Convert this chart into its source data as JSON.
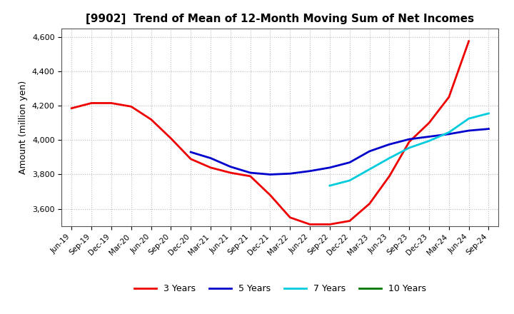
{
  "title": "[9902]  Trend of Mean of 12-Month Moving Sum of Net Incomes",
  "ylabel": "Amount (million yen)",
  "ylim": [
    3500,
    4650
  ],
  "yticks": [
    3600,
    3800,
    4000,
    4200,
    4400,
    4600
  ],
  "background_color": "#ffffff",
  "grid_color": "#bbbbbb",
  "line_3y_color": "#ee0000",
  "line_5y_color": "#0000cc",
  "line_7y_color": "#00ccdd",
  "line_10y_color": "#007700",
  "x_labels": [
    "Jun-19",
    "Sep-19",
    "Dec-19",
    "Mar-20",
    "Jun-20",
    "Sep-20",
    "Dec-20",
    "Mar-21",
    "Jun-21",
    "Sep-21",
    "Dec-21",
    "Mar-22",
    "Jun-22",
    "Sep-22",
    "Dec-22",
    "Mar-23",
    "Jun-23",
    "Sep-23",
    "Dec-23",
    "Mar-24",
    "Jun-24",
    "Sep-24"
  ],
  "series_3y": [
    4185,
    4215,
    4215,
    4195,
    4120,
    4010,
    3890,
    3840,
    3810,
    3790,
    3680,
    3550,
    3510,
    3510,
    3530,
    3630,
    3790,
    3990,
    4100,
    4250,
    4575,
    null
  ],
  "series_5y": [
    null,
    null,
    null,
    null,
    null,
    null,
    3930,
    3895,
    3845,
    3810,
    3800,
    3805,
    3820,
    3840,
    3870,
    3935,
    3975,
    4005,
    4020,
    4035,
    4055,
    4065
  ],
  "series_7y": [
    null,
    null,
    null,
    null,
    null,
    null,
    null,
    null,
    null,
    null,
    null,
    null,
    null,
    3735,
    3765,
    3830,
    3895,
    3955,
    3995,
    4045,
    4125,
    4155
  ],
  "series_10y": [
    null,
    null,
    null,
    null,
    null,
    null,
    null,
    null,
    null,
    null,
    null,
    null,
    null,
    null,
    null,
    null,
    null,
    null,
    null,
    null,
    null,
    null
  ],
  "legend_labels": [
    "3 Years",
    "5 Years",
    "7 Years",
    "10 Years"
  ]
}
